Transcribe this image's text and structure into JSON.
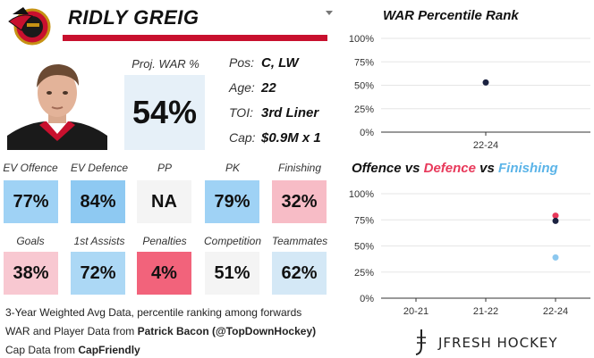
{
  "player": {
    "name": "RIDLY GREIG",
    "team_logo": "ottawa-senators-logo",
    "team_color": "#c8102e"
  },
  "projected_war": {
    "label": "Proj. WAR %",
    "value": "54%"
  },
  "info": [
    {
      "label": "Pos:",
      "value": "C, LW"
    },
    {
      "label": "Age:",
      "value": "22"
    },
    {
      "label": "TOI:",
      "value": "3rd Liner"
    },
    {
      "label": "Cap:",
      "value": "$0.9M x 1"
    }
  ],
  "tiles_row1": [
    {
      "label": "EV Offence",
      "value": "77%",
      "color": "#9fd2f5"
    },
    {
      "label": "EV Defence",
      "value": "84%",
      "color": "#8ec9f2"
    },
    {
      "label": "PP",
      "value": "NA",
      "color": "#f4f4f4"
    },
    {
      "label": "PK",
      "value": "79%",
      "color": "#9fd2f5"
    },
    {
      "label": "Finishing",
      "value": "32%",
      "color": "#f7bcc6"
    }
  ],
  "tiles_row2": [
    {
      "label": "Goals",
      "value": "38%",
      "color": "#f8c8d1"
    },
    {
      "label": "1st Assists",
      "value": "72%",
      "color": "#acd8f5"
    },
    {
      "label": "Penalties",
      "value": "4%",
      "color": "#f2637b"
    },
    {
      "label": "Competition",
      "value": "51%",
      "color": "#f4f4f4"
    },
    {
      "label": "Teammates",
      "value": "62%",
      "color": "#d4e8f6"
    }
  ],
  "footer": {
    "line1": "3-Year Weighted Avg Data, percentile ranking among forwards",
    "line2_prefix": "WAR and Player Data from ",
    "line2_source": "Patrick Bacon (@TopDownHockey)",
    "line3_prefix": "Cap Data from ",
    "line3_source": "CapFriendly"
  },
  "brand": {
    "name": "JFRESH HOCKEY"
  },
  "chart_data": [
    {
      "type": "scatter",
      "title": "WAR Percentile Rank",
      "categories": [
        "22-24"
      ],
      "yticks": [
        "100%",
        "75%",
        "50%",
        "25%",
        "0%"
      ],
      "ylim": [
        0,
        100
      ],
      "grid": true,
      "series": [
        {
          "values": [
            53
          ],
          "color": "#1b2240"
        }
      ]
    },
    {
      "type": "scatter",
      "title_parts": [
        {
          "text": "Offence",
          "color": "#111111"
        },
        {
          "text": " vs ",
          "color": "#111111"
        },
        {
          "text": "Defence",
          "color": "#e8385a"
        },
        {
          "text": " vs ",
          "color": "#111111"
        },
        {
          "text": "Finishing",
          "color": "#5bb4e8"
        }
      ],
      "categories": [
        "20-21",
        "21-22",
        "22-24"
      ],
      "yticks": [
        "100%",
        "75%",
        "50%",
        "25%",
        "0%"
      ],
      "ylim": [
        0,
        100
      ],
      "grid": true,
      "series": [
        {
          "values": [
            null,
            null,
            79
          ],
          "color": "#e8385a"
        },
        {
          "values": [
            null,
            null,
            74
          ],
          "color": "#1b2240"
        },
        {
          "values": [
            null,
            null,
            39
          ],
          "color": "#8cc8ef"
        }
      ]
    }
  ]
}
